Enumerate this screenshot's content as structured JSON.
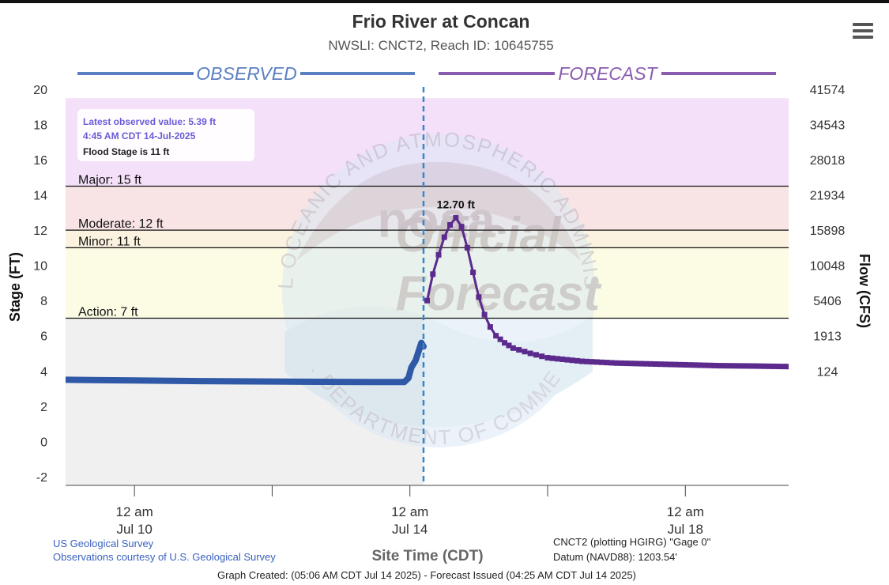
{
  "chart_data": {
    "type": "line",
    "title": "Frio River at Concan",
    "subtitle": "NWSLI: CNCT2, Reach ID: 10645755",
    "xlabel": "Site Time (CDT)",
    "ylabel_left": "Stage (FT)",
    "ylabel_right": "Flow (CFS)",
    "ylim": [
      -2.5,
      20
    ],
    "x_range": [
      "2025-07-09 00:00",
      "2025-07-19 12:00"
    ],
    "y_ticks": [
      -2,
      0,
      2,
      4,
      6,
      8,
      10,
      12,
      14,
      16,
      18,
      20
    ],
    "y_tick_labels": [
      "-2",
      "0",
      "2",
      "4",
      "6",
      "8",
      "10",
      "12",
      "14",
      "16",
      "18",
      "20"
    ],
    "flow_ticks": [
      {
        "stage": 20,
        "label": "41574"
      },
      {
        "stage": 18,
        "label": "34543"
      },
      {
        "stage": 16,
        "label": "28018"
      },
      {
        "stage": 14,
        "label": "21934"
      },
      {
        "stage": 12,
        "label": "15898"
      },
      {
        "stage": 10,
        "label": "10048"
      },
      {
        "stage": 8,
        "label": "5406"
      },
      {
        "stage": 6,
        "label": "1913"
      },
      {
        "stage": 4,
        "label": "124"
      }
    ],
    "x_ticks": [
      {
        "x": "2025-07-10 00:00",
        "line1": "12 am",
        "line2": "Jul 10"
      },
      {
        "x": "2025-07-14 00:00",
        "line1": "12 am",
        "line2": "Jul 14"
      },
      {
        "x": "2025-07-18 00:00",
        "line1": "12 am",
        "line2": "Jul 18"
      }
    ],
    "x_minor_ticks": [
      "2025-07-12 00:00",
      "2025-07-16 00:00"
    ],
    "now": "2025-07-14 04:45",
    "section_labels": {
      "observed": "OBSERVED",
      "forecast": "FORECAST"
    },
    "flood_categories": [
      {
        "name": "Major",
        "label": "Major: 15 ft",
        "stage": 14.5,
        "from": 14.5,
        "to": 19.5,
        "color": "#f4e0f8"
      },
      {
        "name": "Moderate",
        "label": "Moderate: 12 ft",
        "stage": 12,
        "from": 12,
        "to": 14.5,
        "color": "#f8e4e4"
      },
      {
        "name": "Minor",
        "label": "Minor: 11 ft",
        "stage": 11,
        "from": 11,
        "to": 12,
        "color": "#fbf3df"
      },
      {
        "name": "Action",
        "label": "Action: 7 ft",
        "stage": 7,
        "from": 7,
        "to": 11,
        "color": "#fcfbe4"
      }
    ],
    "below_action_color": "#f0f0f0",
    "series": [
      {
        "name": "Observed",
        "color": "#2f58a6",
        "points": [
          [
            "2025-07-09 00:00",
            3.5
          ],
          [
            "2025-07-09 12:00",
            3.48
          ],
          [
            "2025-07-10 00:00",
            3.46
          ],
          [
            "2025-07-11 00:00",
            3.42
          ],
          [
            "2025-07-12 00:00",
            3.4
          ],
          [
            "2025-07-13 00:00",
            3.38
          ],
          [
            "2025-07-13 12:00",
            3.37
          ],
          [
            "2025-07-13 22:00",
            3.37
          ],
          [
            "2025-07-13 23:30",
            3.6
          ],
          [
            "2025-07-14 00:30",
            4.2
          ],
          [
            "2025-07-14 02:00",
            4.6
          ],
          [
            "2025-07-14 03:00",
            5.1
          ],
          [
            "2025-07-14 04:00",
            5.6
          ],
          [
            "2025-07-14 04:45",
            5.39
          ]
        ]
      },
      {
        "name": "Forecast",
        "color": "#5b2a8c",
        "points": [
          [
            "2025-07-14 06:00",
            8.0
          ],
          [
            "2025-07-14 08:00",
            9.5
          ],
          [
            "2025-07-14 10:00",
            10.6
          ],
          [
            "2025-07-14 12:00",
            11.6
          ],
          [
            "2025-07-14 14:00",
            12.3
          ],
          [
            "2025-07-14 16:00",
            12.7
          ],
          [
            "2025-07-14 18:00",
            12.2
          ],
          [
            "2025-07-14 20:00",
            11.0
          ],
          [
            "2025-07-14 22:00",
            9.6
          ],
          [
            "2025-07-15 00:00",
            8.2
          ],
          [
            "2025-07-15 02:00",
            7.2
          ],
          [
            "2025-07-15 04:00",
            6.5
          ],
          [
            "2025-07-15 06:00",
            6.0
          ],
          [
            "2025-07-15 09:00",
            5.6
          ],
          [
            "2025-07-15 12:00",
            5.3
          ],
          [
            "2025-07-15 18:00",
            5.0
          ],
          [
            "2025-07-16 00:00",
            4.75
          ],
          [
            "2025-07-16 12:00",
            4.55
          ],
          [
            "2025-07-17 00:00",
            4.45
          ],
          [
            "2025-07-17 12:00",
            4.4
          ],
          [
            "2025-07-18 00:00",
            4.35
          ],
          [
            "2025-07-18 12:00",
            4.3
          ],
          [
            "2025-07-19 00:00",
            4.28
          ],
          [
            "2025-07-19 12:00",
            4.25
          ]
        ]
      }
    ],
    "peak_label": "12.70 ft",
    "peak_at": [
      "2025-07-14 16:00",
      12.7
    ],
    "info_box": {
      "line1": "Latest observed value: 5.39 ft",
      "line2": "4:45 AM CDT 14-Jul-2025",
      "line3": "Flood Stage is 11 ft"
    },
    "watermark": {
      "ring_text_top": "NATIONAL OCEANIC AND ATMOSPHERIC ADMINISTRATION",
      "ring_text_bottom": "U.S. DEPARTMENT OF COMMERCE",
      "center_text": "noaa",
      "stamp_line1": "Official",
      "stamp_line2": "Forecast"
    }
  },
  "footer": {
    "credit_line1": "US Geological Survey",
    "credit_line2": "Observations courtesy of U.S. Geological Survey",
    "datum_line1": "CNCT2 (plotting HGIRG) \"Gage 0\"",
    "datum_line2": "Datum (NAVD88): 1203.54'",
    "created_line": "Graph Created: (05:06 AM CDT Jul 14 2025) - Forecast Issued (04:25 AM CDT Jul 14 2025)"
  },
  "colors": {
    "observed": "#2f58a6",
    "forecast": "#5b2a8c",
    "observed_header": "#5b80c2",
    "forecast_header": "#8a5cb0",
    "credit_link": "#3a62c0",
    "info_text": "#6a5ad6"
  },
  "menu_icon": "hamburger-menu-icon"
}
